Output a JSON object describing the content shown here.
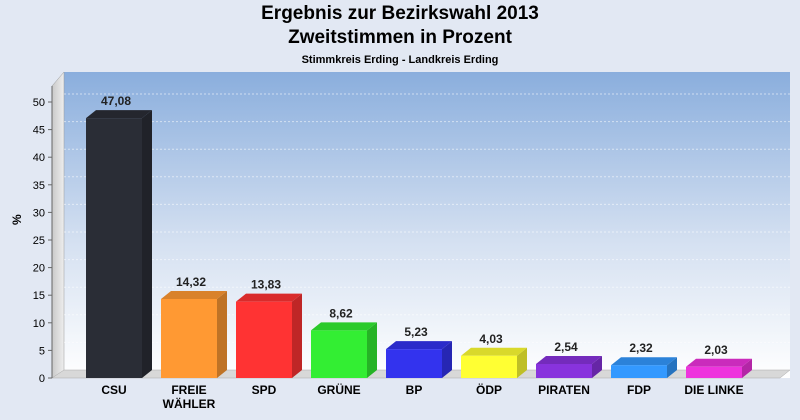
{
  "chart_data": {
    "type": "bar",
    "title": "Ergebnis zur Bezirkswahl 2013",
    "subtitle": "Zweitstimmen in Prozent",
    "subsubtitle": "Stimmkreis Erding - Landkreis Erding",
    "ylabel": "%",
    "xlabel": "",
    "ylim": [
      0,
      50
    ],
    "yticks": [
      0,
      5,
      10,
      15,
      20,
      25,
      30,
      35,
      40,
      45,
      50
    ],
    "grid": true,
    "categories": [
      "CSU",
      "FREIE WÄHLER",
      "SPD",
      "GRÜNE",
      "BP",
      "ÖDP",
      "PIRATEN",
      "FDP",
      "DIE LINKE"
    ],
    "category_lines": [
      [
        "CSU"
      ],
      [
        "FREIE",
        "WÄHLER"
      ],
      [
        "SPD"
      ],
      [
        "GRÜNE"
      ],
      [
        "BP"
      ],
      [
        "ÖDP"
      ],
      [
        "PIRATEN"
      ],
      [
        "FDP"
      ],
      [
        "DIE LINKE"
      ]
    ],
    "values": [
      47.08,
      14.32,
      13.83,
      8.62,
      5.23,
      4.03,
      2.54,
      2.32,
      2.03
    ],
    "value_labels": [
      "47,08",
      "14,32",
      "13,83",
      "8,62",
      "5,23",
      "4,03",
      "2,54",
      "2,32",
      "2,03"
    ],
    "colors": [
      "#2a2d36",
      "#ff9933",
      "#ff3333",
      "#33ee33",
      "#3333ee",
      "#ffff33",
      "#8833dd",
      "#3399ff",
      "#ee33dd"
    ]
  }
}
